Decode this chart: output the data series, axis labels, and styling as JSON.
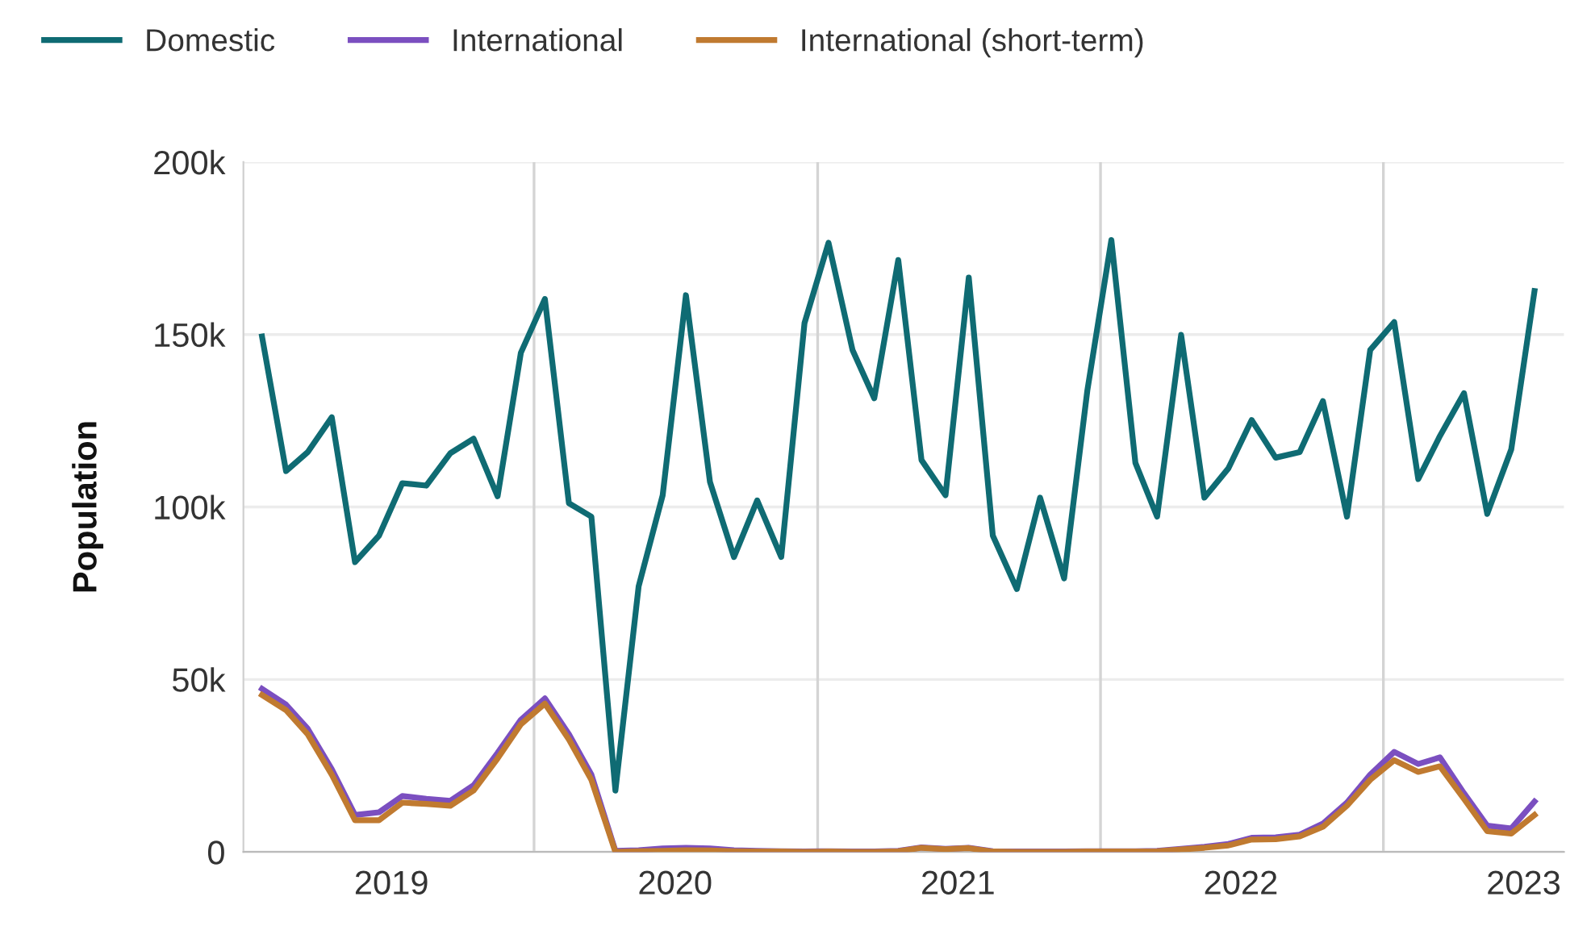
{
  "chart_data": {
    "type": "line",
    "ylabel": "Population",
    "x": [
      "2019-01-15",
      "2019-02-15",
      "2019-03-15",
      "2019-04-15",
      "2019-05-15",
      "2019-06-15",
      "2019-07-15",
      "2019-08-15",
      "2019-09-15",
      "2019-10-15",
      "2019-11-15",
      "2019-12-15",
      "2020-01-15",
      "2020-02-15",
      "2020-03-15",
      "2020-04-15",
      "2020-05-15",
      "2020-06-15",
      "2020-07-15",
      "2020-08-15",
      "2020-09-15",
      "2020-10-15",
      "2020-11-15",
      "2020-12-15",
      "2021-01-15",
      "2021-02-15",
      "2021-03-15",
      "2021-04-15",
      "2021-05-15",
      "2021-06-15",
      "2021-07-15",
      "2021-08-15",
      "2021-09-15",
      "2021-10-15",
      "2021-11-15",
      "2021-12-15",
      "2022-01-15",
      "2022-02-15",
      "2022-03-15",
      "2022-04-15",
      "2022-05-15",
      "2022-06-15",
      "2022-07-15",
      "2022-08-15",
      "2022-09-15",
      "2022-10-15",
      "2022-11-15",
      "2022-12-15",
      "2023-01-15",
      "2023-02-15",
      "2023-03-15",
      "2023-04-15",
      "2023-05-15",
      "2023-06-15",
      "2023-07-15"
    ],
    "series": [
      {
        "name": "Domestic",
        "color": "#0f6b73",
        "values": [
          149400,
          110400,
          115900,
          126000,
          84000,
          91700,
          106900,
          106200,
          115600,
          119800,
          103100,
          144700,
          160300,
          101100,
          97200,
          17800,
          77000,
          103400,
          161400,
          107300,
          85500,
          101900,
          85500,
          153300,
          176600,
          145500,
          131500,
          171600,
          113600,
          103400,
          166500,
          91700,
          76200,
          102700,
          79300,
          133800,
          177400,
          112800,
          97200,
          149900,
          102700,
          111200,
          125200,
          114300,
          115900,
          130700,
          97200,
          145500,
          153600,
          108100,
          120600,
          133000,
          98000,
          116700,
          162600
        ]
      },
      {
        "name": "International",
        "color": "#7b4fc0",
        "values": [
          47300,
          42700,
          35700,
          24000,
          10700,
          11500,
          16200,
          15400,
          14800,
          19300,
          28700,
          38300,
          44500,
          34100,
          22400,
          300,
          500,
          1000,
          1200,
          1000,
          500,
          300,
          200,
          100,
          200,
          100,
          100,
          300,
          1300,
          900,
          1200,
          200,
          100,
          100,
          100,
          200,
          200,
          200,
          300,
          900,
          1500,
          2300,
          4100,
          4200,
          5000,
          8200,
          14300,
          22400,
          29000,
          25500,
          27400,
          17000,
          7600,
          6800,
          14600
        ]
      },
      {
        "name": "International (short-term)",
        "color": "#c07a30",
        "values": [
          45500,
          41100,
          34100,
          22400,
          9200,
          9200,
          14300,
          13900,
          13400,
          17800,
          27100,
          37000,
          43000,
          32600,
          20900,
          0,
          200,
          300,
          500,
          400,
          200,
          100,
          100,
          0,
          100,
          0,
          0,
          200,
          1200,
          800,
          1100,
          100,
          0,
          0,
          0,
          100,
          100,
          100,
          200,
          700,
          1200,
          1900,
          3600,
          3700,
          4500,
          7300,
          13400,
          20900,
          26600,
          23200,
          24800,
          15400,
          6000,
          5300,
          10700
        ]
      }
    ],
    "ylim": [
      0,
      200000
    ],
    "yticks": [
      {
        "value": 0,
        "label": "0"
      },
      {
        "value": 50000,
        "label": "50k"
      },
      {
        "value": 100000,
        "label": "100k"
      },
      {
        "value": 150000,
        "label": "150k"
      },
      {
        "value": 200000,
        "label": "200k"
      }
    ],
    "xlim": [
      "2018-12-22",
      "2023-08-22"
    ],
    "xticks": [
      {
        "value": "2019-07-01",
        "label": "2019"
      },
      {
        "value": "2020-07-01",
        "label": "2020"
      },
      {
        "value": "2021-07-01",
        "label": "2021"
      },
      {
        "value": "2022-07-01",
        "label": "2022"
      },
      {
        "value": "2023-07-01",
        "label": "2023"
      }
    ],
    "ref_lines": [
      {
        "axis": "x",
        "value": "2020-01-01",
        "color": "#d4d4d4"
      },
      {
        "axis": "x",
        "value": "2021-01-01",
        "color": "#d4d4d4"
      },
      {
        "axis": "x",
        "value": "2022-01-01",
        "color": "#d4d4d4"
      },
      {
        "axis": "x",
        "value": "2023-01-01",
        "color": "#d4d4d4"
      }
    ],
    "grid": "y",
    "legend": "top left",
    "marker": "none",
    "line_style": "solid"
  }
}
